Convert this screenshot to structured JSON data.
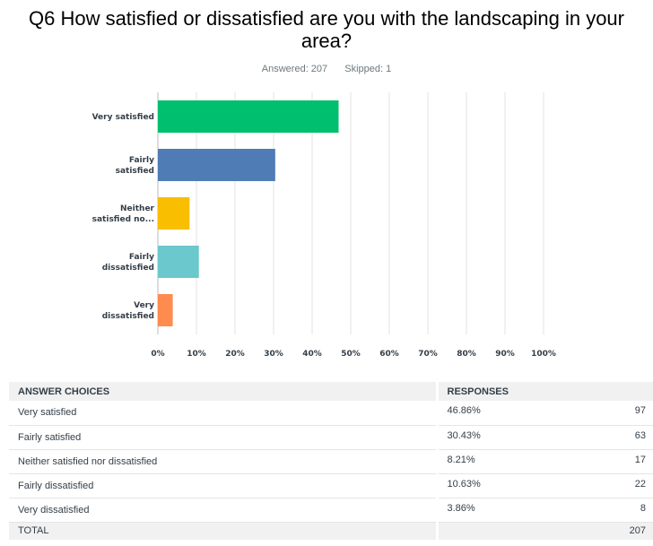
{
  "question": {
    "title": "Q6 How satisfied or dissatisfied are you with the landscaping in your area?",
    "answered_label": "Answered: 207",
    "skipped_label": "Skipped: 1"
  },
  "chart_data": {
    "type": "bar",
    "orientation": "horizontal",
    "categories": [
      "Very satisfied",
      "Fairly satisfied",
      "Neither satisfied no...",
      "Fairly dissatisfied",
      "Very dissatisfied"
    ],
    "category_lines": [
      [
        "Very satisfied"
      ],
      [
        "Fairly",
        "satisfied"
      ],
      [
        "Neither",
        "satisfied no..."
      ],
      [
        "Fairly",
        "dissatisfied"
      ],
      [
        "Very",
        "dissatisfied"
      ]
    ],
    "values": [
      46.86,
      30.43,
      8.21,
      10.63,
      3.86
    ],
    "colors": [
      "#00bf6f",
      "#507cb6",
      "#f9be00",
      "#6bc8cd",
      "#ff8b4f"
    ],
    "xlim": [
      0,
      100
    ],
    "xticks": [
      0,
      10,
      20,
      30,
      40,
      50,
      60,
      70,
      80,
      90,
      100
    ],
    "xtick_labels": [
      "0%",
      "10%",
      "20%",
      "30%",
      "40%",
      "50%",
      "60%",
      "70%",
      "80%",
      "90%",
      "100%"
    ],
    "grid": true
  },
  "table": {
    "headers": {
      "choices": "ANSWER CHOICES",
      "responses": "RESPONSES"
    },
    "rows": [
      {
        "choice": "Very satisfied",
        "percent": "46.86%",
        "count": "97"
      },
      {
        "choice": "Fairly satisfied",
        "percent": "30.43%",
        "count": "63"
      },
      {
        "choice": "Neither satisfied nor dissatisfied",
        "percent": "8.21%",
        "count": "17"
      },
      {
        "choice": "Fairly dissatisfied",
        "percent": "10.63%",
        "count": "22"
      },
      {
        "choice": "Very dissatisfied",
        "percent": "3.86%",
        "count": "8"
      }
    ],
    "total": {
      "label": "TOTAL",
      "count": "207"
    }
  }
}
